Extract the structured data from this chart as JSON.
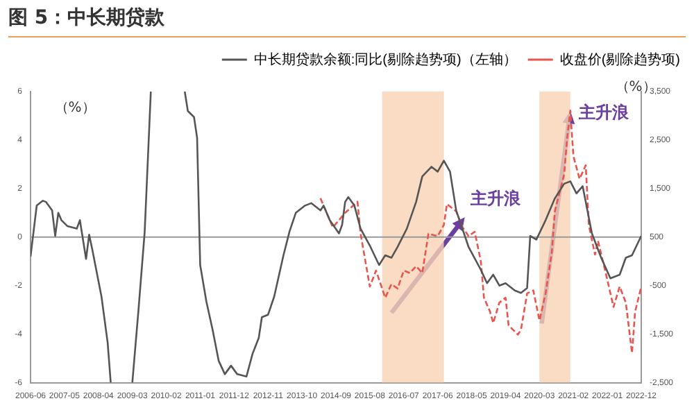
{
  "chart_data": {
    "type": "line",
    "title": "图 5：中长期贷款",
    "ylabel": "（%）",
    "y2label": "（%）",
    "legend": "top",
    "xlim": [
      "2006-06",
      "2022-12"
    ],
    "xticks": [
      "2006-06",
      "2007-05",
      "2008-04",
      "2009-03",
      "2010-02",
      "2011-01",
      "2011-12",
      "2012-11",
      "2013-10",
      "2014-09",
      "2015-08",
      "2016-07",
      "2017-06",
      "2018-05",
      "2019-04",
      "2020-03",
      "2021-02",
      "2022-01",
      "2022-12"
    ],
    "ylim": [
      -6,
      6
    ],
    "yticks": [
      -6,
      -4,
      -2,
      0,
      2,
      4,
      6
    ],
    "y2lim": [
      -2500,
      3500
    ],
    "y2ticks": [
      {
        "value": -2500,
        "label": "-2,500"
      },
      {
        "value": -1500,
        "label": "-1,500"
      },
      {
        "value": -500,
        "label": "-500"
      },
      {
        "value": 500,
        "label": "500"
      },
      {
        "value": 1500,
        "label": "1,500"
      },
      {
        "value": 2500,
        "label": "2,500"
      },
      {
        "value": 3500,
        "label": "3,500"
      }
    ],
    "series": [
      {
        "name": "中长期贷款余额:同比(剔除趋势项)（左轴）",
        "color": "#555555",
        "line_style": "solid",
        "x": [
          "2006-06",
          "2006-08",
          "2006-10",
          "2006-11",
          "2007-01",
          "2007-02",
          "2007-03",
          "2007-04",
          "2007-06",
          "2007-09",
          "2007-10",
          "2007-12",
          "2008-01",
          "2008-02",
          "2008-04",
          "2008-05",
          "2008-07",
          "2008-08",
          "2009-01",
          "2009-03",
          "2009-05",
          "2009-07",
          "2009-09",
          "2010-02",
          "2010-08",
          "2010-09",
          "2010-11",
          "2010-12",
          "2011-01",
          "2011-03",
          "2011-05",
          "2011-07",
          "2011-09",
          "2011-11",
          "2012-01",
          "2012-04",
          "2012-06",
          "2012-08",
          "2012-09",
          "2012-11",
          "2013-01",
          "2013-04",
          "2013-06",
          "2013-08",
          "2013-11",
          "2014-01",
          "2014-04",
          "2014-05",
          "2014-07",
          "2014-10",
          "2014-11",
          "2014-12",
          "2015-01",
          "2015-03",
          "2015-05",
          "2015-08",
          "2015-11",
          "2016-01",
          "2016-03",
          "2016-05",
          "2016-08",
          "2016-11",
          "2017-01",
          "2017-04",
          "2017-06",
          "2017-08",
          "2017-10",
          "2017-12",
          "2018-04",
          "2018-08",
          "2018-10",
          "2018-12",
          "2019-02",
          "2019-04",
          "2019-07",
          "2019-09",
          "2019-11",
          "2019-12",
          "2020-02",
          "2020-05",
          "2020-08",
          "2020-11",
          "2021-01",
          "2021-03",
          "2021-05",
          "2021-08",
          "2021-11",
          "2022-02",
          "2022-05",
          "2022-07",
          "2022-09",
          "2022-12"
        ],
        "values": [
          -0.8,
          1.3,
          1.5,
          1.45,
          1.1,
          0.05,
          1.0,
          0.7,
          0.45,
          0.35,
          0.7,
          -0.9,
          0.1,
          -0.5,
          -1.8,
          -2.45,
          -4.35,
          -6,
          null,
          -6,
          -3.0,
          0.2,
          6,
          null,
          6,
          5.2,
          4.95,
          4.1,
          -1.15,
          -2.65,
          -3.8,
          -5.1,
          -5.65,
          -5.3,
          -5.65,
          -5.75,
          -4.8,
          -4.15,
          -3.3,
          -3.2,
          -2.45,
          -0.75,
          0.25,
          1.0,
          1.3,
          1.4,
          1.1,
          1.3,
          0.7,
          0.15,
          0.5,
          1.45,
          1.65,
          1.3,
          0.35,
          -0.35,
          -1.15,
          -0.75,
          -0.85,
          -0.4,
          0.35,
          1.45,
          2.5,
          2.9,
          2.7,
          3.15,
          2.7,
          1.1,
          -0.4,
          -1.35,
          -1.9,
          -1.55,
          -2.0,
          -1.9,
          -2.2,
          -2.3,
          -2.1,
          0.05,
          -0.1,
          0.7,
          1.6,
          2.2,
          2.3,
          1.8,
          2.1,
          0.15,
          -0.85,
          -1.7,
          -1.55,
          -0.85,
          -0.75,
          0.05
        ]
      },
      {
        "name": "收盘价(剔除趋势项)",
        "color": "#e8554e",
        "line_style": "dashed",
        "axis": "y2",
        "x": [
          "2014-04",
          "2014-08",
          "2014-12",
          "2015-04",
          "2015-05",
          "2015-08",
          "2015-10",
          "2016-01",
          "2016-03",
          "2016-05",
          "2016-07",
          "2016-09",
          "2016-11",
          "2017-01",
          "2017-03",
          "2017-06",
          "2017-08",
          "2017-09",
          "2017-12",
          "2018-02",
          "2018-04",
          "2018-06",
          "2018-08",
          "2018-09",
          "2018-11",
          "2018-12",
          "2019-02",
          "2019-04",
          "2019-05",
          "2019-08",
          "2019-09",
          "2019-11",
          "2020-01",
          "2020-03",
          "2020-05",
          "2020-07",
          "2020-08",
          "2020-11",
          "2020-12",
          "2021-01",
          "2021-02",
          "2021-04",
          "2021-06",
          "2021-07",
          "2021-09",
          "2021-10",
          "2022-01",
          "2022-03",
          "2022-05",
          "2022-07",
          "2022-09",
          "2022-10",
          "2022-12"
        ],
        "values": [
          1300,
          700,
          1000,
          1230,
          570,
          -520,
          -190,
          -750,
          -470,
          -560,
          -190,
          -240,
          -100,
          -240,
          570,
          520,
          750,
          1180,
          1030,
          710,
          520,
          610,
          0,
          -750,
          -1040,
          -1270,
          -850,
          -750,
          -1320,
          -1510,
          -1410,
          -660,
          -600,
          -1220,
          -660,
          190,
          1040,
          1790,
          2550,
          3110,
          2170,
          1700,
          1980,
          750,
          140,
          420,
          -380,
          -940,
          -520,
          -850,
          -1890,
          -1040,
          -520
        ]
      }
    ],
    "ref_lines": [
      {
        "axis": "y",
        "value": 0,
        "color": "#999999"
      }
    ],
    "bands": [
      {
        "axis": "x",
        "from": "2015-12",
        "to": "2017-08",
        "color": "#f8d3b4"
      },
      {
        "axis": "x",
        "from": "2020-03",
        "to": "2021-01",
        "color": "#f8d3b4"
      }
    ],
    "annotations": [
      "主升浪",
      {
        "text": "主升浪",
        "x": "2021-01",
        "y": 5.2
      }
    ]
  }
}
